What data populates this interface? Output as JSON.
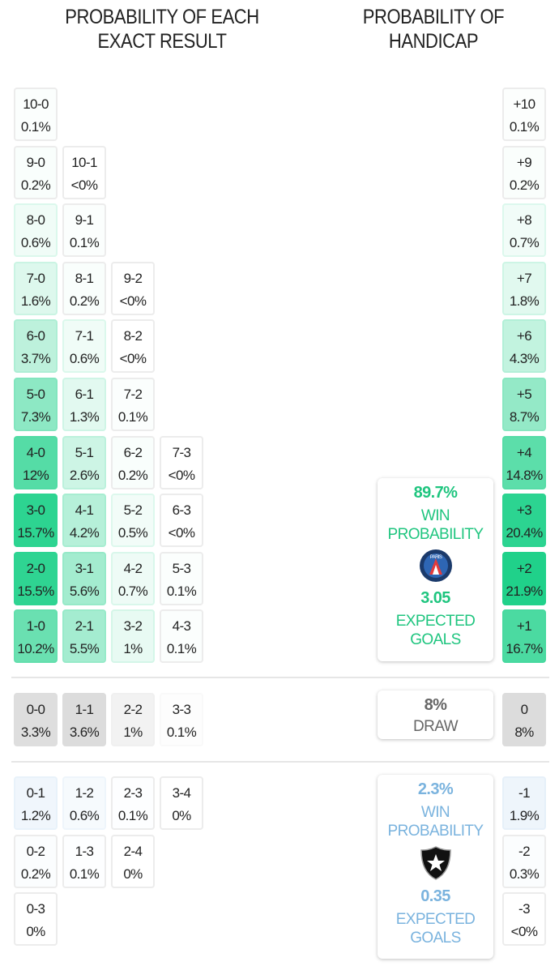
{
  "headers": {
    "exact": "PROBABILITY OF EACH EXACT RESULT",
    "handicap": "PROBABILITY OF HANDICAP"
  },
  "colors": {
    "home": "#1fd18a",
    "draw": "#d9d9d9",
    "away": "#9fc8ea",
    "home_text": "#1fc57f",
    "away_text": "#7ab3de",
    "draw_text": "#666666"
  },
  "home_rows": [
    [
      [
        "10-0",
        "0.1%"
      ]
    ],
    [
      [
        "9-0",
        "0.2%"
      ],
      [
        "10-1",
        "<0%"
      ]
    ],
    [
      [
        "8-0",
        "0.6%"
      ],
      [
        "9-1",
        "0.1%"
      ]
    ],
    [
      [
        "7-0",
        "1.6%"
      ],
      [
        "8-1",
        "0.2%"
      ],
      [
        "9-2",
        "<0%"
      ]
    ],
    [
      [
        "6-0",
        "3.7%"
      ],
      [
        "7-1",
        "0.6%"
      ],
      [
        "8-2",
        "<0%"
      ]
    ],
    [
      [
        "5-0",
        "7.3%"
      ],
      [
        "6-1",
        "1.3%"
      ],
      [
        "7-2",
        "0.1%"
      ]
    ],
    [
      [
        "4-0",
        "12%"
      ],
      [
        "5-1",
        "2.6%"
      ],
      [
        "6-2",
        "0.2%"
      ],
      [
        "7-3",
        "<0%"
      ]
    ],
    [
      [
        "3-0",
        "15.7%"
      ],
      [
        "4-1",
        "4.2%"
      ],
      [
        "5-2",
        "0.5%"
      ],
      [
        "6-3",
        "<0%"
      ]
    ],
    [
      [
        "2-0",
        "15.5%"
      ],
      [
        "3-1",
        "5.6%"
      ],
      [
        "4-2",
        "0.7%"
      ],
      [
        "5-3",
        "0.1%"
      ]
    ],
    [
      [
        "1-0",
        "10.2%"
      ],
      [
        "2-1",
        "5.5%"
      ],
      [
        "3-2",
        "1%"
      ],
      [
        "4-3",
        "0.1%"
      ]
    ]
  ],
  "draw_row": [
    [
      "0-0",
      "3.3%"
    ],
    [
      "1-1",
      "3.6%"
    ],
    [
      "2-2",
      "1%"
    ],
    [
      "3-3",
      "0.1%"
    ]
  ],
  "away_rows": [
    [
      [
        "0-1",
        "1.2%"
      ],
      [
        "1-2",
        "0.6%"
      ],
      [
        "2-3",
        "0.1%"
      ],
      [
        "3-4",
        "0%"
      ]
    ],
    [
      [
        "0-2",
        "0.2%"
      ],
      [
        "1-3",
        "0.1%"
      ],
      [
        "2-4",
        "0%"
      ]
    ],
    [
      [
        "0-3",
        "0%"
      ]
    ]
  ],
  "handicap_home": [
    [
      "+10",
      "0.1%"
    ],
    [
      "+9",
      "0.2%"
    ],
    [
      "+8",
      "0.7%"
    ],
    [
      "+7",
      "1.8%"
    ],
    [
      "+6",
      "4.3%"
    ],
    [
      "+5",
      "8.7%"
    ],
    [
      "+4",
      "14.8%"
    ],
    [
      "+3",
      "20.4%"
    ],
    [
      "+2",
      "21.9%"
    ],
    [
      "+1",
      "16.7%"
    ]
  ],
  "handicap_draw": [
    "0",
    "8%"
  ],
  "handicap_away": [
    [
      "-1",
      "1.9%"
    ],
    [
      "-2",
      "0.3%"
    ],
    [
      "-3",
      "<0%"
    ]
  ],
  "home_card": {
    "win": "89.7%",
    "win_label_1": "WIN",
    "win_label_2": "PROBABILITY",
    "xg": "3.05",
    "xg_label_1": "EXPECTED",
    "xg_label_2": "GOALS",
    "crest": "psg-crest-icon",
    "crest_text": "PARIS"
  },
  "draw_card": {
    "value": "8%",
    "label": "DRAW"
  },
  "away_card": {
    "win": "2.3%",
    "win_label_1": "WIN",
    "win_label_2": "PROBABILITY",
    "xg": "0.35",
    "xg_label_1": "EXPECTED",
    "xg_label_2": "GOALS",
    "crest": "botafogo-crest-icon"
  }
}
